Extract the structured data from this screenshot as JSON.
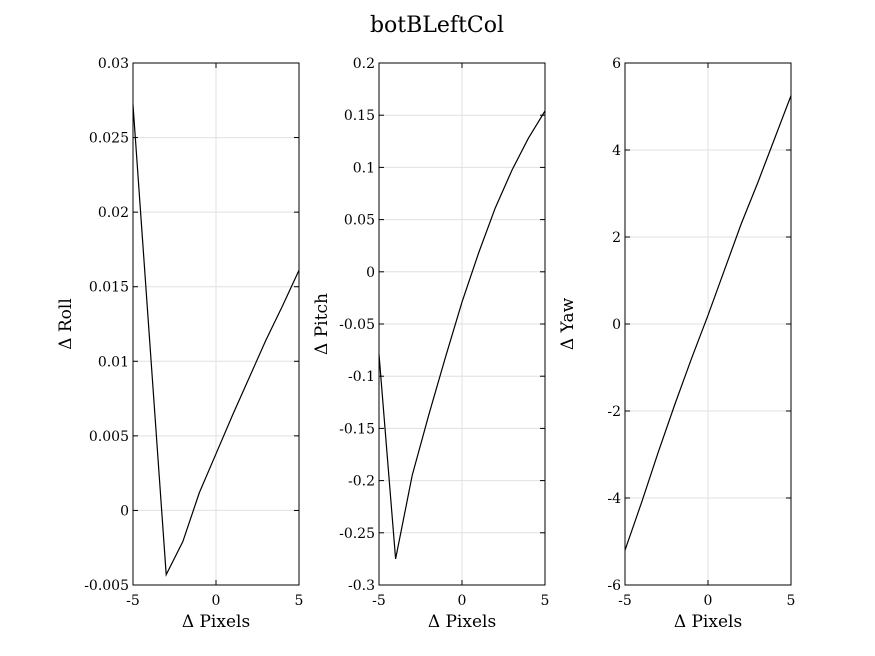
{
  "figure": {
    "title": "botBLeftCol"
  },
  "chart_data": [
    {
      "type": "line",
      "xlabel": "Δ Pixels",
      "ylabel": "Δ Roll",
      "xlim": [
        -5,
        5
      ],
      "ylim": [
        -0.005,
        0.03
      ],
      "xticks": [
        "-5",
        "0",
        "5"
      ],
      "yticks": [
        "-0.005",
        "0",
        "0.005",
        "0.01",
        "0.015",
        "0.02",
        "0.025",
        "0.03"
      ],
      "grid": true,
      "series": [
        {
          "x": [
            -5,
            -3,
            -2,
            -1,
            0,
            1,
            2,
            3,
            4,
            5
          ],
          "y": [
            0.0272,
            -0.0043,
            -0.0021,
            0.0012,
            0.0038,
            0.0064,
            0.0089,
            0.0114,
            0.0137,
            0.0161
          ]
        }
      ]
    },
    {
      "type": "line",
      "xlabel": "Δ Pixels",
      "ylabel": "Δ Pitch",
      "xlim": [
        -5,
        5
      ],
      "ylim": [
        -0.3,
        0.2
      ],
      "xticks": [
        "-5",
        "0",
        "5"
      ],
      "yticks": [
        "-0.3",
        "-0.25",
        "-0.2",
        "-0.15",
        "-0.1",
        "-0.05",
        "0",
        "0.05",
        "0.1",
        "0.15",
        "0.2"
      ],
      "grid": true,
      "series": [
        {
          "x": [
            -5,
            -4,
            -3,
            -2,
            -1,
            0,
            1,
            2,
            3,
            4,
            5
          ],
          "y": [
            -0.079,
            -0.275,
            -0.195,
            -0.137,
            -0.082,
            -0.029,
            0.018,
            0.061,
            0.097,
            0.128,
            0.154
          ]
        }
      ]
    },
    {
      "type": "line",
      "xlabel": "Δ Pixels",
      "ylabel": "Δ Yaw",
      "xlim": [
        -5,
        5
      ],
      "ylim": [
        -6,
        6
      ],
      "xticks": [
        "-5",
        "0",
        "5"
      ],
      "yticks": [
        "-6",
        "-4",
        "-2",
        "0",
        "2",
        "4",
        "6"
      ],
      "grid": true,
      "series": [
        {
          "x": [
            -5,
            -4,
            -3,
            -2,
            -1,
            0,
            1,
            2,
            3,
            4,
            5
          ],
          "y": [
            -5.2,
            -4.1,
            -2.95,
            -1.85,
            -0.8,
            0.2,
            1.25,
            2.3,
            3.25,
            4.25,
            5.25
          ]
        }
      ]
    }
  ]
}
